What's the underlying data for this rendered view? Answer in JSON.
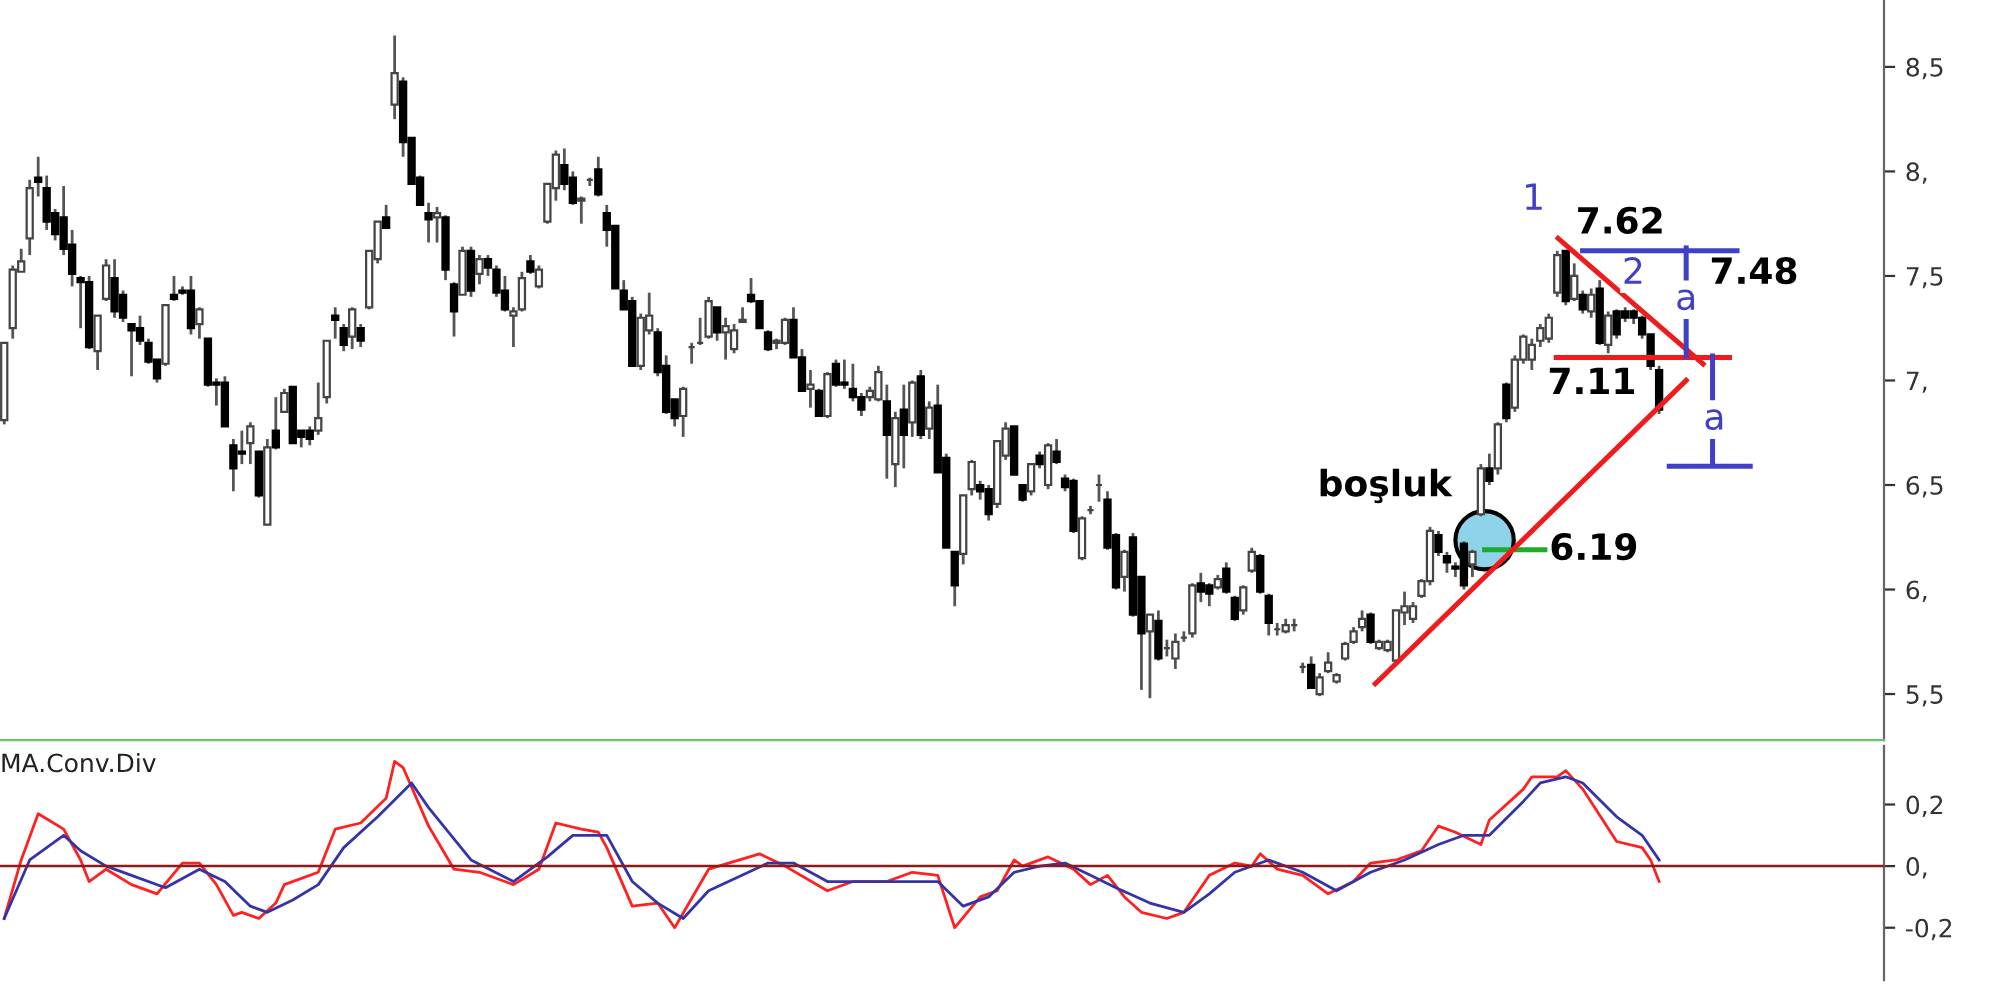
{
  "chart_data": [
    {
      "type": "candlestick",
      "categories": [
        null,
        null,
        null,
        null,
        null,
        null,
        null,
        null,
        null,
        null,
        null,
        null,
        null,
        null,
        null,
        null,
        null,
        null,
        null,
        null,
        null,
        null,
        null,
        null,
        null,
        null,
        null,
        null,
        null,
        null,
        null,
        null,
        null,
        null,
        null,
        null,
        null,
        null,
        null,
        null,
        null,
        null,
        null,
        null,
        null,
        null,
        null,
        null,
        null,
        null,
        null,
        null,
        null,
        null,
        null,
        null,
        null,
        null,
        null,
        null,
        null,
        null,
        null,
        null,
        null,
        null,
        null,
        null,
        null,
        null,
        null,
        null,
        null,
        null,
        null,
        null,
        null,
        null,
        null,
        null,
        null,
        null,
        null,
        null,
        null,
        null,
        null,
        null,
        null,
        null,
        null,
        null,
        null,
        null,
        null,
        null,
        null,
        null,
        null,
        null,
        null,
        null,
        null,
        null,
        null,
        null,
        null,
        null,
        null,
        null,
        null,
        null,
        null,
        null,
        null,
        null,
        null,
        null,
        null,
        null,
        null,
        null,
        null,
        null,
        null,
        null,
        null,
        null,
        null,
        null,
        null,
        null,
        null,
        null,
        null,
        null,
        null,
        null,
        null,
        null,
        null,
        null,
        null,
        null,
        null,
        null,
        null,
        null,
        null,
        null,
        null,
        null,
        null,
        null,
        null,
        null,
        null,
        null,
        null,
        null,
        null,
        null,
        null,
        null,
        null,
        null,
        null,
        null,
        null,
        null,
        null,
        null,
        null,
        null,
        null,
        null,
        null,
        null,
        null,
        null,
        null,
        null,
        null,
        null,
        null,
        null,
        null,
        null,
        null,
        null,
        null,
        null,
        null,
        null,
        null,
        null,
        null,
        null,
        null,
        null,
        null,
        null,
        null,
        null,
        null,
        null,
        null,
        null,
        null,
        null,
        null,
        null,
        null,
        null,
        null,
        null,
        null,
        null,
        null,
        null,
        null,
        null
      ],
      "ohlc": [
        [
          6.81,
          7.18,
          6.79,
          7.18
        ],
        [
          7.25,
          7.55,
          7.2,
          7.53
        ],
        [
          7.52,
          7.63,
          7.52,
          7.57
        ],
        [
          7.68,
          7.96,
          7.6,
          7.92
        ],
        [
          7.97,
          8.07,
          7.88,
          7.95
        ],
        [
          7.92,
          7.98,
          7.72,
          7.76
        ],
        [
          7.8,
          7.82,
          7.67,
          7.7
        ],
        [
          7.78,
          7.93,
          7.6,
          7.63
        ],
        [
          7.65,
          7.72,
          7.45,
          7.51
        ],
        [
          7.49,
          7.5,
          7.25,
          7.47
        ],
        [
          7.47,
          7.5,
          7.15,
          7.16
        ],
        [
          7.14,
          7.31,
          7.05,
          7.31
        ],
        [
          7.39,
          7.58,
          7.38,
          7.55
        ],
        [
          7.49,
          7.58,
          7.3,
          7.33
        ],
        [
          7.41,
          7.43,
          7.28,
          7.3
        ],
        [
          7.27,
          7.27,
          7.02,
          7.24
        ],
        [
          7.25,
          7.31,
          7.17,
          7.19
        ],
        [
          7.18,
          7.2,
          7.08,
          7.09
        ],
        [
          7.1,
          7.1,
          6.99,
          7.01
        ],
        [
          7.08,
          7.36,
          7.07,
          7.36
        ],
        [
          7.41,
          7.5,
          7.38,
          7.39
        ],
        [
          7.43,
          7.45,
          7.41,
          7.42
        ],
        [
          7.43,
          7.5,
          7.22,
          7.25
        ],
        [
          7.27,
          7.35,
          7.2,
          7.34
        ],
        [
          7.2,
          7.2,
          6.97,
          6.98
        ],
        [
          6.99,
          7.01,
          6.88,
          6.98
        ],
        [
          6.99,
          7.02,
          6.78,
          6.78
        ],
        [
          6.69,
          6.72,
          6.47,
          6.58
        ],
        [
          6.66,
          6.76,
          6.6,
          6.65
        ],
        [
          6.7,
          6.8,
          6.6,
          6.78
        ],
        [
          6.66,
          6.66,
          6.44,
          6.45
        ],
        [
          6.31,
          6.72,
          6.31,
          6.68
        ],
        [
          6.76,
          6.92,
          6.67,
          6.68
        ],
        [
          6.85,
          6.96,
          6.85,
          6.94
        ],
        [
          6.97,
          6.97,
          6.7,
          6.7
        ],
        [
          6.76,
          6.76,
          6.68,
          6.73
        ],
        [
          6.76,
          6.78,
          6.69,
          6.72
        ],
        [
          6.76,
          6.99,
          6.74,
          6.82
        ],
        [
          6.92,
          7.19,
          6.89,
          7.19
        ],
        [
          7.31,
          7.35,
          7.2,
          7.29
        ],
        [
          7.25,
          7.27,
          7.14,
          7.17
        ],
        [
          7.21,
          7.35,
          7.15,
          7.34
        ],
        [
          7.25,
          7.27,
          7.16,
          7.19
        ],
        [
          7.35,
          7.62,
          7.34,
          7.62
        ],
        [
          7.58,
          7.76,
          7.56,
          7.76
        ],
        [
          7.78,
          7.84,
          7.73,
          7.73
        ],
        [
          8.32,
          8.65,
          8.25,
          8.47
        ],
        [
          8.43,
          8.45,
          8.07,
          8.14
        ],
        [
          8.16,
          8.16,
          7.94,
          7.94
        ],
        [
          7.97,
          7.98,
          7.84,
          7.84
        ],
        [
          7.8,
          7.85,
          7.66,
          7.77
        ],
        [
          7.78,
          7.83,
          7.66,
          7.8
        ],
        [
          7.78,
          7.79,
          7.48,
          7.53
        ],
        [
          7.46,
          7.47,
          7.21,
          7.33
        ],
        [
          7.41,
          7.64,
          7.41,
          7.62
        ],
        [
          7.62,
          7.64,
          7.4,
          7.43
        ],
        [
          7.51,
          7.6,
          7.46,
          7.58
        ],
        [
          7.58,
          7.6,
          7.5,
          7.54
        ],
        [
          7.53,
          7.55,
          7.4,
          7.42
        ],
        [
          7.43,
          7.5,
          7.33,
          7.34
        ],
        [
          7.31,
          7.35,
          7.16,
          7.33
        ],
        [
          7.34,
          7.52,
          7.33,
          7.49
        ],
        [
          7.57,
          7.6,
          7.51,
          7.52
        ],
        [
          7.45,
          7.55,
          7.44,
          7.53
        ],
        [
          7.76,
          7.94,
          7.75,
          7.94
        ],
        [
          7.92,
          8.1,
          7.86,
          8.08
        ],
        [
          8.03,
          8.11,
          7.91,
          7.94
        ],
        [
          7.97,
          8.0,
          7.84,
          7.85
        ],
        [
          7.86,
          7.88,
          7.75,
          7.87
        ],
        [
          7.96,
          7.97,
          7.93,
          7.96
        ],
        [
          8.01,
          8.07,
          7.88,
          7.89
        ],
        [
          7.8,
          7.84,
          7.64,
          7.72
        ],
        [
          7.74,
          7.74,
          7.44,
          7.44
        ],
        [
          7.43,
          7.48,
          7.34,
          7.34
        ],
        [
          7.38,
          7.4,
          7.07,
          7.07
        ],
        [
          7.07,
          7.32,
          7.05,
          7.3
        ],
        [
          7.24,
          7.42,
          7.22,
          7.31
        ],
        [
          7.23,
          7.25,
          7.02,
          7.04
        ],
        [
          7.07,
          7.12,
          6.84,
          6.85
        ],
        [
          6.91,
          6.91,
          6.78,
          6.82
        ],
        [
          6.83,
          6.97,
          6.73,
          6.96
        ],
        [
          7.16,
          7.18,
          7.08,
          7.16
        ],
        [
          7.18,
          7.3,
          7.17,
          7.18
        ],
        [
          7.21,
          7.4,
          7.2,
          7.38
        ],
        [
          7.35,
          7.35,
          7.19,
          7.23
        ],
        [
          7.23,
          7.3,
          7.1,
          7.26
        ],
        [
          7.15,
          7.27,
          7.13,
          7.24
        ],
        [
          7.28,
          7.35,
          7.28,
          7.29
        ],
        [
          7.41,
          7.49,
          7.37,
          7.38
        ],
        [
          7.38,
          7.38,
          7.25,
          7.25
        ],
        [
          7.23,
          7.24,
          7.14,
          7.15
        ],
        [
          7.18,
          7.2,
          7.15,
          7.19
        ],
        [
          7.18,
          7.3,
          7.17,
          7.29
        ],
        [
          7.29,
          7.35,
          7.11,
          7.11
        ],
        [
          7.11,
          7.15,
          6.95,
          6.95
        ],
        [
          6.96,
          7.05,
          6.87,
          6.98
        ],
        [
          6.95,
          6.96,
          6.83,
          6.83
        ],
        [
          6.83,
          7.04,
          6.82,
          7.03
        ],
        [
          7.08,
          7.1,
          6.97,
          6.98
        ],
        [
          6.99,
          7.1,
          6.96,
          6.98
        ],
        [
          6.96,
          7.08,
          6.9,
          6.92
        ],
        [
          6.92,
          6.94,
          6.83,
          6.86
        ],
        [
          6.92,
          6.97,
          6.9,
          6.95
        ],
        [
          6.91,
          7.07,
          6.9,
          7.04
        ],
        [
          6.9,
          6.98,
          6.53,
          6.74
        ],
        [
          6.6,
          6.85,
          6.49,
          6.82
        ],
        [
          6.86,
          6.98,
          6.58,
          6.74
        ],
        [
          6.8,
          7.0,
          6.73,
          6.99
        ],
        [
          7.02,
          7.05,
          6.72,
          6.74
        ],
        [
          6.77,
          6.9,
          6.72,
          6.87
        ],
        [
          6.88,
          6.98,
          6.56,
          6.56
        ],
        [
          6.63,
          6.65,
          6.2,
          6.2
        ],
        [
          6.18,
          6.18,
          5.92,
          6.02
        ],
        [
          6.17,
          6.45,
          6.12,
          6.45
        ],
        [
          6.48,
          6.62,
          6.45,
          6.61
        ],
        [
          6.5,
          6.52,
          6.43,
          6.47
        ],
        [
          6.48,
          6.5,
          6.33,
          6.36
        ],
        [
          6.41,
          6.71,
          6.39,
          6.71
        ],
        [
          6.64,
          6.8,
          6.62,
          6.77
        ],
        [
          6.78,
          6.78,
          6.55,
          6.55
        ],
        [
          6.5,
          6.5,
          6.42,
          6.43
        ],
        [
          6.47,
          6.6,
          6.45,
          6.6
        ],
        [
          6.64,
          6.66,
          6.58,
          6.6
        ],
        [
          6.5,
          6.7,
          6.48,
          6.69
        ],
        [
          6.66,
          6.72,
          6.6,
          6.61
        ],
        [
          6.53,
          6.55,
          6.47,
          6.49
        ],
        [
          6.52,
          6.53,
          6.27,
          6.28
        ],
        [
          6.15,
          6.35,
          6.14,
          6.34
        ],
        [
          6.38,
          6.4,
          6.36,
          6.38
        ],
        [
          6.5,
          6.55,
          6.42,
          6.5
        ],
        [
          6.43,
          6.47,
          6.19,
          6.2
        ],
        [
          6.26,
          6.27,
          6.0,
          6.01
        ],
        [
          6.06,
          6.19,
          5.99,
          6.18
        ],
        [
          6.25,
          6.27,
          5.87,
          5.88
        ],
        [
          6.06,
          6.06,
          5.52,
          5.79
        ],
        [
          5.8,
          5.88,
          5.48,
          5.88
        ],
        [
          5.85,
          5.9,
          5.66,
          5.67
        ],
        [
          5.72,
          5.76,
          5.68,
          5.72
        ],
        [
          5.67,
          5.79,
          5.62,
          5.75
        ],
        [
          5.77,
          5.8,
          5.75,
          5.77
        ],
        [
          5.79,
          6.03,
          5.77,
          6.02
        ],
        [
          6.03,
          6.08,
          5.94,
          5.99
        ],
        [
          6.02,
          6.03,
          5.92,
          5.98
        ],
        [
          6.01,
          6.07,
          6.0,
          6.05
        ],
        [
          6.1,
          6.13,
          5.98,
          5.99
        ],
        [
          5.96,
          5.97,
          5.85,
          5.86
        ],
        [
          5.9,
          6.02,
          5.88,
          6.01
        ],
        [
          6.09,
          6.2,
          6.08,
          6.18
        ],
        [
          6.16,
          6.17,
          5.98,
          5.99
        ],
        [
          5.97,
          5.98,
          5.78,
          5.84
        ],
        [
          5.81,
          5.84,
          5.78,
          5.81
        ],
        [
          5.8,
          5.86,
          5.79,
          5.83
        ],
        [
          5.83,
          5.86,
          5.8,
          5.83
        ],
        [
          5.63,
          5.65,
          5.6,
          5.63
        ],
        [
          5.64,
          5.68,
          5.53,
          5.53
        ],
        [
          5.5,
          5.6,
          5.49,
          5.58
        ],
        [
          5.61,
          5.7,
          5.6,
          5.65
        ],
        [
          5.56,
          5.6,
          5.55,
          5.59
        ],
        [
          5.67,
          5.75,
          5.66,
          5.74
        ],
        [
          5.75,
          5.82,
          5.74,
          5.8
        ],
        [
          5.82,
          5.9,
          5.8,
          5.86
        ],
        [
          5.88,
          5.89,
          5.74,
          5.75
        ],
        [
          5.72,
          5.76,
          5.71,
          5.75
        ],
        [
          5.71,
          5.76,
          5.7,
          5.75
        ],
        [
          5.66,
          5.9,
          5.64,
          5.9
        ],
        [
          5.89,
          5.99,
          5.83,
          5.92
        ],
        [
          5.86,
          5.94,
          5.84,
          5.92
        ],
        [
          5.97,
          6.05,
          5.96,
          6.04
        ],
        [
          6.04,
          6.3,
          6.02,
          6.28
        ],
        [
          6.26,
          6.28,
          6.16,
          6.18
        ],
        [
          6.16,
          6.18,
          6.08,
          6.13
        ],
        [
          6.11,
          6.13,
          6.06,
          6.1
        ],
        [
          6.22,
          6.23,
          6.0,
          6.02
        ],
        [
          6.12,
          6.19,
          6.06,
          6.18
        ],
        [
          6.36,
          6.6,
          6.35,
          6.58
        ],
        [
          6.58,
          6.65,
          6.5,
          6.52
        ],
        [
          6.58,
          6.8,
          6.55,
          6.79
        ],
        [
          6.98,
          6.99,
          6.8,
          6.82
        ],
        [
          6.87,
          7.12,
          6.85,
          7.1
        ],
        [
          7.1,
          7.22,
          7.08,
          7.21
        ],
        [
          7.1,
          7.2,
          7.05,
          7.17
        ],
        [
          7.19,
          7.27,
          7.16,
          7.25
        ],
        [
          7.2,
          7.32,
          7.18,
          7.3
        ],
        [
          7.42,
          7.62,
          7.4,
          7.6
        ],
        [
          7.62,
          7.62,
          7.36,
          7.38
        ],
        [
          7.39,
          7.56,
          7.38,
          7.5
        ],
        [
          7.41,
          7.43,
          7.32,
          7.34
        ],
        [
          7.33,
          7.44,
          7.3,
          7.41
        ],
        [
          7.44,
          7.48,
          7.17,
          7.18
        ],
        [
          7.17,
          7.33,
          7.13,
          7.31
        ],
        [
          7.33,
          7.34,
          7.2,
          7.22
        ],
        [
          7.33,
          7.35,
          7.28,
          7.3
        ],
        [
          7.33,
          7.34,
          7.27,
          7.3
        ],
        [
          7.3,
          7.31,
          7.2,
          7.22
        ],
        [
          7.22,
          7.22,
          7.05,
          7.07
        ],
        [
          7.05,
          7.07,
          6.84,
          6.86
        ],
        null,
        null,
        null,
        null,
        null,
        null,
        null,
        null,
        null,
        null,
        null,
        null,
        null,
        null,
        null,
        null,
        null,
        null,
        null,
        null,
        null,
        null,
        null,
        null,
        null,
        null
      ],
      "ref_lines": [
        {
          "axis": "y",
          "value": 7.62,
          "label": "7.62",
          "color": "#3f3fc8"
        },
        {
          "axis": "y",
          "value": 7.11,
          "label": "7.11",
          "color": "#ee1c1c"
        },
        {
          "axis": "y",
          "value": 6.19,
          "label": "6.19",
          "color": "#1faa2a"
        }
      ],
      "annotations": [
        "1",
        "2",
        "7.48",
        "a",
        "a",
        "boşluk"
      ],
      "ylim": [
        5.28,
        8.82
      ],
      "yticks": [
        {
          "value": 5.5,
          "label": "5,5"
        },
        {
          "value": 6,
          "label": "6,"
        },
        {
          "value": 6.5,
          "label": "6,5"
        },
        {
          "value": 7,
          "label": "7,"
        },
        {
          "value": 7.5,
          "label": "7,5"
        },
        {
          "value": 8,
          "label": "8,"
        },
        {
          "value": 8.5,
          "label": "8,5"
        }
      ],
      "tick_labels": "y",
      "grid": false
    },
    {
      "type": "line",
      "title": "MA.Conv.Div",
      "categories": [
        null,
        null,
        null,
        null,
        null,
        null,
        null,
        null,
        null,
        null,
        null,
        null,
        null,
        null,
        null,
        null,
        null,
        null,
        null,
        null,
        null,
        null,
        null,
        null,
        null,
        null,
        null,
        null,
        null,
        null,
        null,
        null,
        null,
        null,
        null,
        null,
        null,
        null,
        null,
        null,
        null,
        null,
        null,
        null,
        null,
        null,
        null,
        null,
        null,
        null,
        null,
        null,
        null,
        null,
        null,
        null,
        null,
        null,
        null,
        null,
        null,
        null,
        null,
        null,
        null,
        null,
        null,
        null,
        null,
        null,
        null,
        null,
        null,
        null,
        null,
        null,
        null,
        null,
        null,
        null,
        null,
        null,
        null,
        null,
        null,
        null,
        null,
        null,
        null,
        null,
        null,
        null,
        null,
        null,
        null,
        null,
        null,
        null,
        null,
        null,
        null,
        null,
        null,
        null,
        null,
        null,
        null,
        null,
        null,
        null,
        null,
        null,
        null,
        null,
        null,
        null,
        null,
        null,
        null,
        null,
        null,
        null,
        null,
        null,
        null,
        null,
        null,
        null,
        null,
        null,
        null,
        null,
        null,
        null,
        null,
        null,
        null,
        null,
        null,
        null,
        null,
        null,
        null,
        null,
        null,
        null,
        null,
        null,
        null,
        null,
        null,
        null,
        null,
        null,
        null,
        null,
        null,
        null,
        null,
        null,
        null,
        null,
        null,
        null,
        null,
        null,
        null,
        null,
        null,
        null,
        null,
        null,
        null,
        null,
        null,
        null,
        null,
        null,
        null,
        null,
        null,
        null,
        null,
        null,
        null,
        null,
        null,
        null,
        null,
        null,
        null,
        null,
        null,
        null,
        null,
        null,
        null,
        null,
        null,
        null,
        null,
        null,
        null,
        null,
        null,
        null,
        null,
        null,
        null,
        null,
        null,
        null,
        null,
        null,
        null,
        null,
        null,
        null,
        null,
        null,
        null,
        null
      ],
      "series": [
        {
          "color": "#ff2020",
          "values": [
            -0.17,
            null,
            0.02,
            null,
            0.17,
            null,
            null,
            0.12,
            null,
            0.02,
            -0.05,
            null,
            -0.01,
            null,
            null,
            -0.06,
            null,
            null,
            -0.09,
            null,
            null,
            0.01,
            null,
            0.01,
            null,
            -0.06,
            null,
            -0.16,
            -0.15,
            null,
            -0.17,
            null,
            -0.12,
            -0.06,
            null,
            null,
            null,
            -0.02,
            null,
            0.12,
            null,
            null,
            0.14,
            null,
            null,
            0.22,
            0.34,
            0.32,
            null,
            null,
            0.13,
            null,
            null,
            -0.01,
            null,
            null,
            -0.02,
            null,
            null,
            null,
            -0.06,
            null,
            null,
            -0.01,
            null,
            0.14,
            null,
            null,
            0.12,
            null,
            0.11,
            0.06,
            null,
            null,
            -0.13,
            null,
            null,
            -0.12,
            null,
            -0.2,
            null,
            null,
            null,
            -0.01,
            null,
            null,
            null,
            null,
            null,
            0.04,
            null,
            null,
            0.0,
            null,
            null,
            null,
            null,
            -0.08,
            null,
            null,
            -0.05,
            null,
            null,
            null,
            -0.05,
            null,
            null,
            -0.02,
            null,
            null,
            -0.03,
            null,
            -0.2,
            null,
            null,
            -0.1,
            null,
            -0.08,
            null,
            0.02,
            0.0,
            null,
            null,
            0.03,
            null,
            null,
            -0.01,
            null,
            -0.06,
            null,
            -0.03,
            null,
            -0.1,
            null,
            -0.15,
            null,
            null,
            -0.17,
            null,
            -0.15,
            null,
            null,
            -0.03,
            null,
            null,
            0.01,
            null,
            0.0,
            0.04,
            null,
            -0.01,
            null,
            null,
            -0.03,
            null,
            null,
            -0.09,
            null,
            null,
            -0.05,
            null,
            0.01,
            null,
            null,
            0.02,
            null,
            null,
            0.05,
            null,
            0.13,
            null,
            0.11,
            null,
            null,
            0.07,
            0.15,
            null,
            null,
            null,
            0.25,
            0.29,
            null,
            null,
            0.29,
            0.31,
            null,
            0.25,
            null,
            null,
            null,
            0.08,
            null,
            null,
            0.06,
            0.02,
            -0.05,
            null,
            null,
            null,
            null,
            null,
            null,
            null,
            null,
            null,
            null,
            null,
            null,
            null,
            null,
            null,
            null,
            null,
            null,
            null,
            null,
            null,
            null,
            null,
            null,
            null,
            null
          ]
        },
        {
          "color": "#3434a8",
          "values": [
            -0.17,
            null,
            null,
            0.02,
            null,
            null,
            null,
            0.1,
            null,
            0.05,
            null,
            null,
            0.0,
            null,
            null,
            -0.03,
            null,
            null,
            null,
            -0.07,
            null,
            null,
            null,
            -0.01,
            null,
            null,
            -0.05,
            null,
            null,
            -0.13,
            null,
            -0.15,
            null,
            null,
            -0.11,
            null,
            null,
            -0.06,
            null,
            null,
            0.06,
            null,
            null,
            null,
            0.16,
            null,
            null,
            null,
            0.27,
            null,
            0.19,
            null,
            null,
            null,
            null,
            0.02,
            null,
            null,
            null,
            null,
            -0.05,
            null,
            null,
            null,
            0.03,
            null,
            null,
            0.1,
            null,
            null,
            null,
            0.1,
            null,
            null,
            -0.05,
            null,
            null,
            -0.12,
            null,
            null,
            -0.17,
            null,
            null,
            -0.08,
            null,
            null,
            null,
            null,
            null,
            null,
            0.01,
            null,
            null,
            0.01,
            null,
            null,
            null,
            -0.05,
            null,
            null,
            null,
            null,
            -0.05,
            null,
            null,
            null,
            null,
            null,
            null,
            null,
            -0.05,
            null,
            null,
            -0.13,
            null,
            null,
            -0.1,
            null,
            null,
            -0.02,
            null,
            null,
            0.0,
            null,
            null,
            0.01,
            null,
            null,
            -0.03,
            null,
            null,
            -0.07,
            null,
            null,
            null,
            -0.12,
            null,
            null,
            null,
            -0.15,
            null,
            null,
            -0.09,
            null,
            null,
            -0.02,
            null,
            null,
            null,
            0.02,
            null,
            null,
            null,
            -0.02,
            null,
            null,
            null,
            -0.08,
            null,
            null,
            null,
            -0.02,
            null,
            null,
            null,
            0.02,
            null,
            null,
            null,
            0.07,
            null,
            null,
            0.1,
            null,
            null,
            0.1,
            null,
            null,
            null,
            0.21,
            null,
            0.27,
            null,
            null,
            0.29,
            null,
            0.27,
            null,
            null,
            null,
            0.16,
            null,
            null,
            0.1,
            null,
            0.02,
            null,
            null,
            null,
            null,
            null,
            null,
            null,
            null,
            null,
            null,
            null,
            null,
            null,
            null,
            null,
            null,
            null,
            null,
            null,
            null,
            null,
            null,
            null,
            null,
            null,
            null
          ]
        }
      ],
      "ref_lines": [
        {
          "axis": "y",
          "value": 0,
          "color": "#8b1a1a"
        }
      ],
      "ylim": [
        -0.37,
        0.39
      ],
      "yticks": [
        {
          "value": -0.2,
          "label": "-0,2"
        },
        {
          "value": 0,
          "label": "0,"
        },
        {
          "value": 0.2,
          "label": "0,2"
        }
      ],
      "tick_labels": "y",
      "grid": false
    }
  ]
}
